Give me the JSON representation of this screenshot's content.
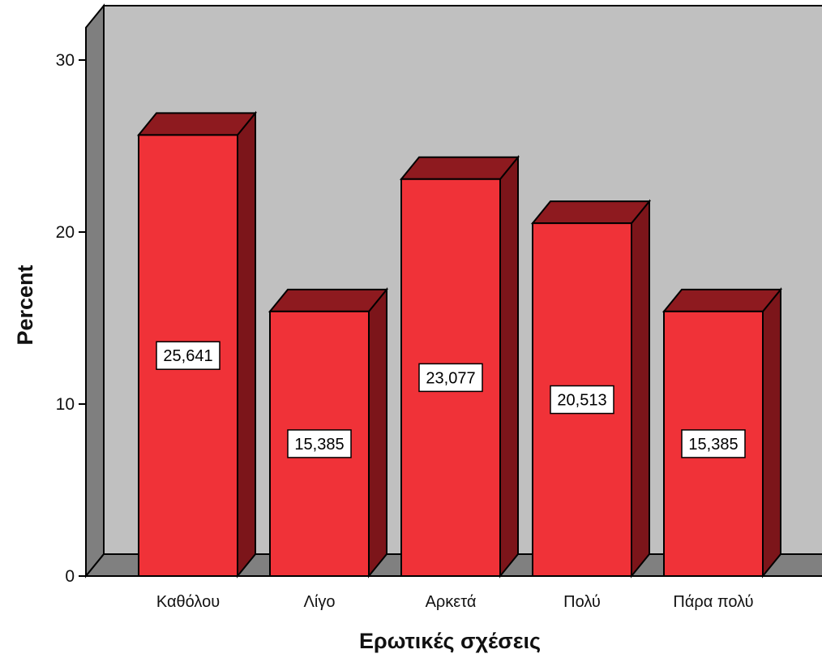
{
  "chart_data": {
    "type": "bar",
    "style": "3d",
    "xlabel": "Ερωτικές σχέσεις",
    "ylabel": "Percent",
    "categories": [
      "Καθόλου",
      "Λίγο",
      "Αρκετά",
      "Πολύ",
      "Πάρα πολύ"
    ],
    "values": [
      25.641,
      15.385,
      23.077,
      20.513,
      15.385
    ],
    "value_labels": [
      "25,641",
      "15,385",
      "23,077",
      "20,513",
      "15,385"
    ],
    "yticks": [
      "0",
      "10",
      "20",
      "30"
    ],
    "ylim": [
      0,
      30
    ],
    "grid": false,
    "legend": "none",
    "colors": {
      "bar_front": "#f03238",
      "bar_top": "#8e1a1f",
      "bar_side": "#7c151a",
      "back_wall": "#c0c0c0",
      "left_wall": "#7f7f7f",
      "floor": "#808080",
      "edge": "#000000"
    }
  }
}
